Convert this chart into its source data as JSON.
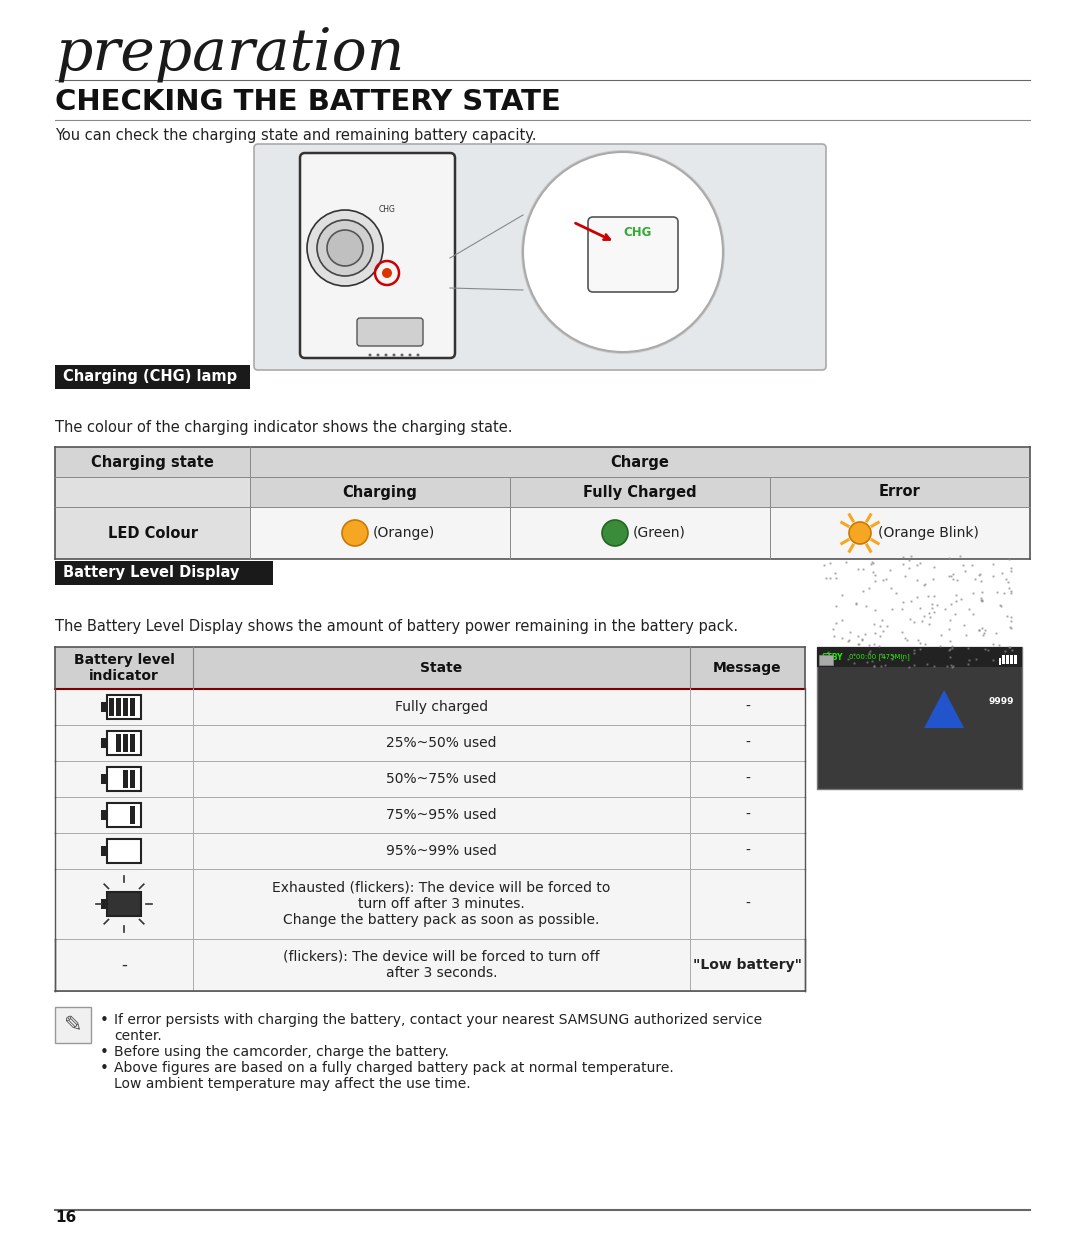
{
  "title_large": "preparation",
  "title_section": "CHECKING THE BATTERY STATE",
  "subtitle1": "You can check the charging state and remaining battery capacity.",
  "chg_lamp_label": "Charging (CHG) lamp",
  "chg_lamp_desc": "The colour of the charging indicator shows the charging state.",
  "charge_table": {
    "header_col": "Charging state",
    "header_span": "Charge",
    "col1": "Charging",
    "col2": "Fully Charged",
    "col3": "Error",
    "row_label": "LED Colour",
    "cell1_color": "#F5A623",
    "cell1_text": "(Orange)",
    "cell2_color": "#3A8C3A",
    "cell2_text": "(Green)",
    "cell3_color": "#F5A623",
    "cell3_text": "(Orange Blink)"
  },
  "battery_label": "Battery Level Display",
  "battery_desc": "The Battery Level Display shows the amount of battery power remaining in the battery pack.",
  "battery_table": {
    "col_headers": [
      "Battery level\nindicator",
      "State",
      "Message"
    ],
    "rows": [
      {
        "state": "Fully charged",
        "message": "-",
        "bars": 4
      },
      {
        "state": "25%~50% used",
        "message": "-",
        "bars": 3
      },
      {
        "state": "50%~75% used",
        "message": "-",
        "bars": 2
      },
      {
        "state": "75%~95% used",
        "message": "-",
        "bars": 1
      },
      {
        "state": "95%~99% used",
        "message": "-",
        "bars": 0
      },
      {
        "state": "Exhausted (flickers): The device will be forced to\nturn off after 3 minutes.\nChange the battery pack as soon as possible.",
        "message": "-",
        "bars": -1
      },
      {
        "state": "(flickers): The device will be forced to turn off\nafter 3 seconds.",
        "message": "\"Low battery\"",
        "bars": -2
      }
    ]
  },
  "notes": [
    "If error persists with charging the battery, contact your nearest SAMSUNG authorized service\ncenter.",
    "Before using the camcorder, charge the battery.",
    "Above figures are based on a fully charged battery pack at normal temperature.\nLow ambient temperature may affect the use time."
  ],
  "page_number": "16",
  "bg_color": "#ffffff",
  "label_bg": "#1a1a1a",
  "label_fg": "#ffffff"
}
